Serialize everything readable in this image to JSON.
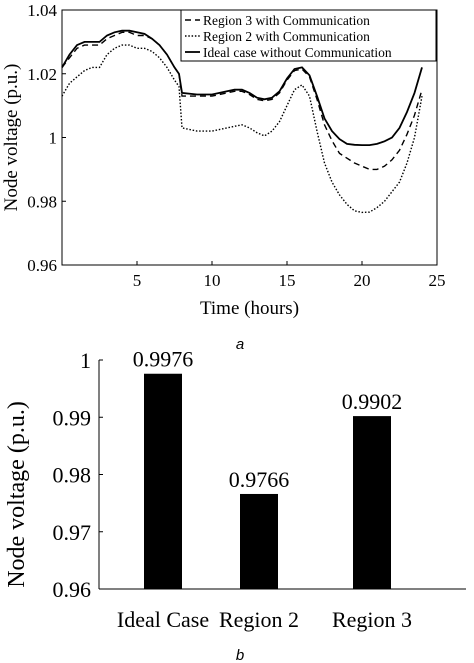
{
  "chart_data": [
    {
      "type": "line",
      "panel_label": "a",
      "xlabel": "Time (hours)",
      "ylabel": "Node voltage (p.u.)",
      "xlim": [
        0,
        25
      ],
      "ylim": [
        0.96,
        1.04
      ],
      "xticks": [
        5,
        10,
        15,
        20,
        25
      ],
      "yticks": [
        "0.96",
        "0.98",
        "1",
        "1.02",
        "1.04"
      ],
      "grid": false,
      "legend_position": "top-right",
      "series": [
        {
          "name": "Region 3 with Communication",
          "style": "dashed",
          "x": [
            0,
            0.5,
            1,
            1.5,
            2,
            2.5,
            3,
            3.5,
            4,
            4.5,
            5,
            5.5,
            6,
            6.5,
            7,
            7.5,
            7.8,
            8,
            9,
            10,
            11,
            11.5,
            12,
            12.5,
            13,
            13.5,
            14,
            14.5,
            15,
            15.5,
            16,
            16.5,
            17,
            17.5,
            18,
            18.5,
            19,
            19.5,
            20,
            20.5,
            21,
            21.5,
            22,
            22.5,
            23,
            23.5,
            24
          ],
          "y": [
            1.022,
            1.025,
            1.028,
            1.029,
            1.029,
            1.029,
            1.031,
            1.032,
            1.033,
            1.033,
            1.032,
            1.032,
            1.031,
            1.029,
            1.026,
            1.022,
            1.02,
            1.013,
            1.013,
            1.013,
            1.014,
            1.0145,
            1.0145,
            1.0135,
            1.012,
            1.0115,
            1.012,
            1.014,
            1.018,
            1.021,
            1.0215,
            1.019,
            1.012,
            1.004,
            0.999,
            0.995,
            0.9935,
            0.992,
            0.991,
            0.99,
            0.99,
            0.991,
            0.993,
            0.996,
            1.001,
            1.007,
            1.015
          ]
        },
        {
          "name": "Region 2 with Communication",
          "style": "dotted",
          "x": [
            0,
            0.5,
            1,
            1.5,
            2,
            2.5,
            3,
            3.5,
            4,
            4.5,
            5,
            5.5,
            6,
            6.5,
            7,
            7.5,
            7.8,
            8,
            9,
            10,
            11,
            11.5,
            12,
            12.5,
            13,
            13.5,
            14,
            14.5,
            15,
            15.5,
            16,
            16.5,
            17,
            17.5,
            18,
            18.5,
            19,
            19.5,
            20,
            20.5,
            21,
            21.5,
            22,
            22.5,
            23,
            23.5,
            24
          ],
          "y": [
            1.013,
            1.017,
            1.019,
            1.021,
            1.022,
            1.022,
            1.026,
            1.028,
            1.029,
            1.029,
            1.028,
            1.028,
            1.027,
            1.025,
            1.022,
            1.018,
            1.016,
            1.003,
            1.002,
            1.002,
            1.003,
            1.0035,
            1.004,
            1.003,
            1.0015,
            1.0005,
            1.002,
            1.005,
            1.01,
            1.015,
            1.0165,
            1.013,
            1.002,
            0.992,
            0.986,
            0.982,
            0.979,
            0.977,
            0.9765,
            0.9766,
            0.978,
            0.98,
            0.983,
            0.986,
            0.992,
            1.0,
            1.013
          ]
        },
        {
          "name": "Ideal case without Communication",
          "style": "solid",
          "x": [
            0,
            0.5,
            1,
            1.5,
            2,
            2.5,
            3,
            3.5,
            4,
            4.5,
            5,
            5.5,
            6,
            6.5,
            7,
            7.5,
            7.8,
            8,
            9,
            10,
            11,
            11.5,
            12,
            12.5,
            13,
            13.5,
            14,
            14.5,
            15,
            15.5,
            16,
            16.5,
            17,
            17.5,
            18,
            18.5,
            19,
            19.5,
            20,
            20.5,
            21,
            21.5,
            22,
            22.5,
            23,
            23.5,
            24
          ],
          "y": [
            1.022,
            1.026,
            1.029,
            1.03,
            1.03,
            1.03,
            1.032,
            1.033,
            1.0335,
            1.0335,
            1.033,
            1.0325,
            1.031,
            1.029,
            1.026,
            1.022,
            1.02,
            1.014,
            1.0135,
            1.0135,
            1.0145,
            1.015,
            1.015,
            1.014,
            1.0125,
            1.012,
            1.0125,
            1.0145,
            1.0185,
            1.0215,
            1.022,
            1.0195,
            1.013,
            1.006,
            1.002,
            0.9995,
            0.998,
            0.9977,
            0.9976,
            0.9976,
            0.998,
            0.9988,
            1.0,
            1.003,
            1.008,
            1.014,
            1.022
          ]
        }
      ]
    },
    {
      "type": "bar",
      "panel_label": "b",
      "ylabel": "Node voltage (p.u.)",
      "categories": [
        "Ideal Case",
        "Region 2",
        "Region 3"
      ],
      "values": [
        0.9976,
        0.9766,
        0.9902
      ],
      "data_labels": [
        "0.9976",
        "0.9766",
        "0.9902"
      ],
      "ylim": [
        0.96,
        1.0
      ],
      "yticks": [
        "0.96",
        "0.97",
        "0.98",
        "0.99",
        "1"
      ],
      "bar_color": "#000000",
      "grid": false
    }
  ]
}
